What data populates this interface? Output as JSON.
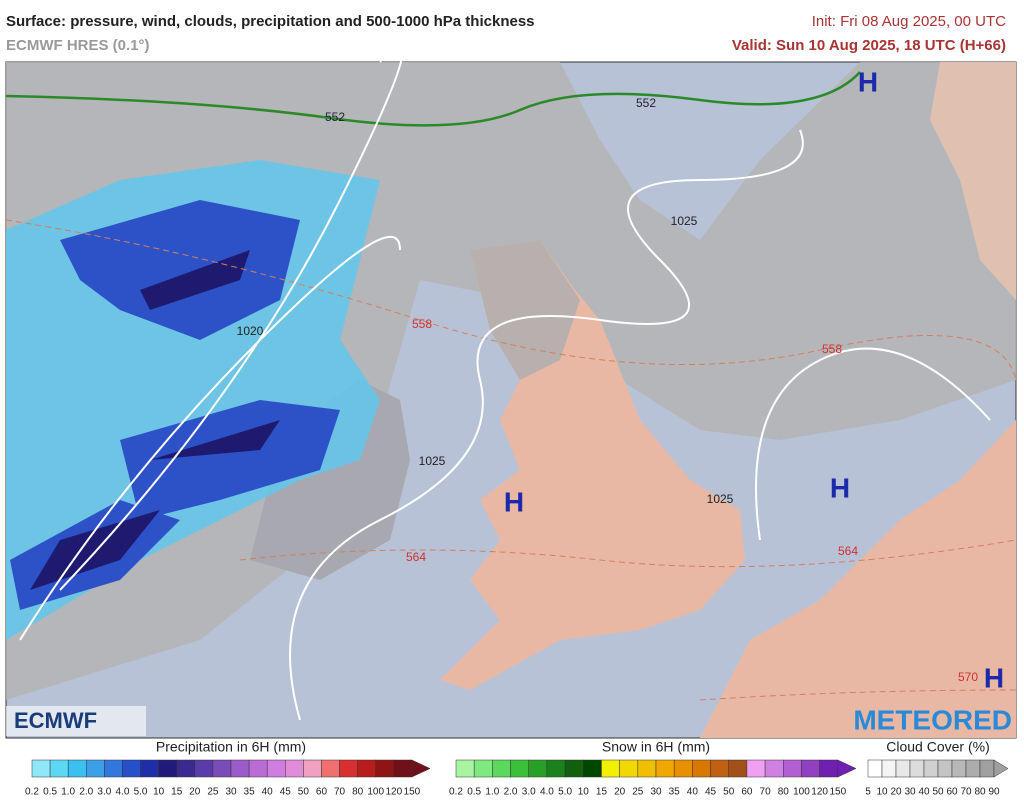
{
  "header": {
    "title": "Surface: pressure, wind, clouds, precipitation and 500-1000 hPa thickness",
    "model": "ECMWF HRES (0.1°)",
    "init": "Init: Fri 08 Aug 2025, 00 UTC",
    "valid": "Valid: Sun 10 Aug 2025, 18 UTC (H+66)"
  },
  "map": {
    "isobar_labels": [
      "1020",
      "1025",
      "1025",
      "1025"
    ],
    "thickness_labels": [
      "552",
      "552",
      "558",
      "558",
      "564",
      "564",
      "570"
    ],
    "highs": [
      "H",
      "H",
      "H",
      "H"
    ]
  },
  "logos": {
    "left": "ECMWF",
    "right": "METEORED"
  },
  "legends": [
    {
      "title": "Precipitation in 6H (mm)",
      "labels": [
        "0.2",
        "0.5",
        "1.0",
        "2.0",
        "3.0",
        "4.0",
        "5.0",
        "10",
        "15",
        "20",
        "25",
        "30",
        "35",
        "40",
        "45",
        "50",
        "60",
        "70",
        "80",
        "100",
        "120",
        "150"
      ],
      "colors": [
        "#8ee8f8",
        "#5cd8f4",
        "#3cc0f0",
        "#3ca0e8",
        "#3278dc",
        "#2650c8",
        "#1e2ea8",
        "#201a78",
        "#3a2a90",
        "#5a3ca8",
        "#7a4cb8",
        "#9a5cc8",
        "#b86cd4",
        "#d07ce0",
        "#e08cd8",
        "#f0a0c0",
        "#f07070",
        "#d83030",
        "#b81c1c",
        "#901414",
        "#701018"
      ]
    },
    {
      "title": "Snow in 6H (mm)",
      "labels": [
        "0.2",
        "0.5",
        "1.0",
        "2.0",
        "3.0",
        "4.0",
        "5.0",
        "10",
        "15",
        "20",
        "25",
        "30",
        "35",
        "40",
        "45",
        "50",
        "60",
        "70",
        "80",
        "100",
        "120",
        "150"
      ],
      "colors": [
        "#a8f4a0",
        "#80e880",
        "#5cd85c",
        "#3cc03c",
        "#28a028",
        "#1c801c",
        "#106010",
        "#004800",
        "#f0f000",
        "#f0d800",
        "#f0c000",
        "#f0a800",
        "#e89000",
        "#d87800",
        "#c06010",
        "#a05018",
        "#f0a0f0",
        "#d080e0",
        "#b060d0",
        "#9040c0",
        "#7020b0"
      ]
    },
    {
      "title": "Cloud Cover (%)",
      "labels": [
        "5",
        "10",
        "20",
        "30",
        "40",
        "50",
        "60",
        "70",
        "80",
        "90"
      ],
      "colors": [
        "#ffffff",
        "#f4f4f4",
        "#e8e8e8",
        "#dcdcdc",
        "#d0d0d0",
        "#c4c4c4",
        "#b8b8b8",
        "#acacac",
        "#a0a0a0"
      ]
    }
  ]
}
